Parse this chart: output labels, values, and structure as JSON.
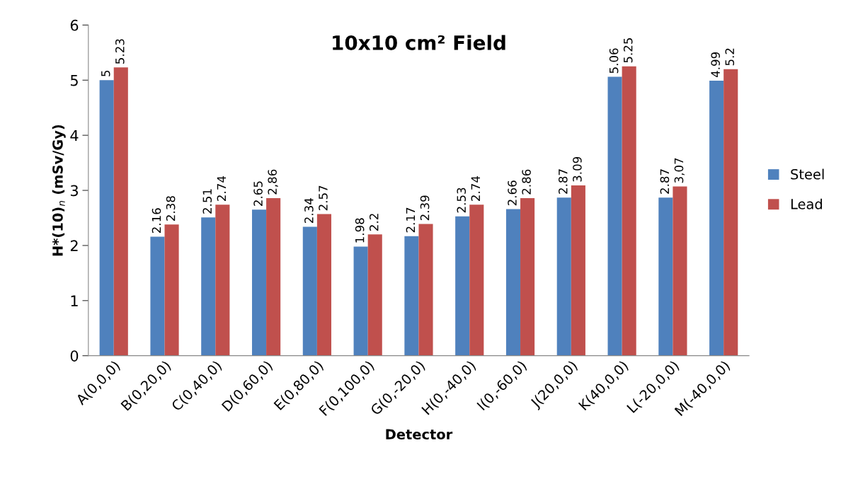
{
  "chart_data": {
    "type": "bar",
    "title": "10x10 cm² Field",
    "xlabel": "Detector",
    "ylabel": "H*(10)$_{n}$ (mSv/Gy)",
    "categories": [
      "A(0,0,0)",
      "B(0,20,0)",
      "C(0,40,0)",
      "D(0,60,0)",
      "E(0,80,0)",
      "F(0,100,0)",
      "G(0,-20,0)",
      "H(0,-40,0)",
      "I(0,-60,0)",
      "J(20,0,0)",
      "K(40,0,0)",
      "L(-20,0,0)",
      "M(-40,0,0)"
    ],
    "series": [
      {
        "name": "Steel",
        "color": "#4f81bd",
        "values": [
          5,
          2.16,
          2.51,
          2.65,
          2.34,
          1.98,
          2.17,
          2.53,
          2.66,
          2.87,
          5.06,
          2.87,
          4.99
        ],
        "value_labels": [
          "5",
          "2.16",
          "2.51",
          "2.65",
          "2.34",
          "1.98",
          "2.17",
          "2.53",
          "2.66",
          "2.87",
          "5.06",
          "2.87",
          "4.99"
        ]
      },
      {
        "name": "Lead",
        "color": "#c0504d",
        "values": [
          5.23,
          2.38,
          2.74,
          2.86,
          2.57,
          2.2,
          2.39,
          2.74,
          2.86,
          3.09,
          5.25,
          3.07,
          5.2
        ],
        "value_labels": [
          "5.23",
          "2.38",
          "2.74",
          "2,86",
          "2.57",
          "2.2",
          "2.39",
          "2.74",
          "2.86",
          "3.09",
          "5.25",
          "3,07",
          "5.2"
        ]
      }
    ],
    "ylim": [
      0,
      6
    ],
    "yticks": [
      0,
      1,
      2,
      3,
      4,
      5,
      6
    ],
    "grid": false,
    "legend": "right"
  }
}
